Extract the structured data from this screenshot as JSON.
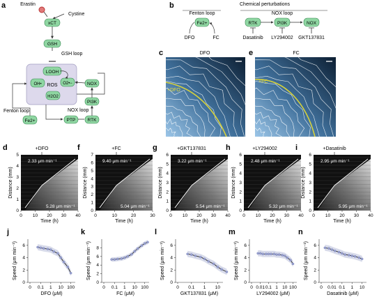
{
  "panels": {
    "a": {
      "letter": "a",
      "erastin": "Erastin",
      "cystine": "Cystine",
      "xct": "xCT",
      "gsh": "GSH",
      "gsh_loop": "GSH loop",
      "gpx4": "GPX4",
      "looh": "LOOH",
      "ros": "ROS",
      "oh": "OH•",
      "o2": "O2•−",
      "h2o2": "H2O2",
      "nox": "NOX",
      "pi3k": "PI3K",
      "ptp": "PTP",
      "rtk": "RTK",
      "fe": "Fe2+",
      "fenton_loop": "Fenton loop",
      "nox_loop": "NOX loop"
    },
    "b": {
      "letter": "b",
      "title": "Chemical perturbations",
      "fenton_loop": "Fenton loop",
      "nox_loop": "NOX loop",
      "fe": "Fe2+",
      "dfo": "DFO",
      "fc": "FC",
      "rtk": "RTK",
      "pi3k": "PI3K",
      "nox": "NOX",
      "dasatinib": "Dasatinib",
      "ly": "LY294002",
      "gkt": "GKT137831"
    },
    "c": {
      "letter": "c",
      "title": "DFO",
      "label": "+DFO"
    },
    "e": {
      "letter": "e",
      "title": "FC",
      "label": "+FC"
    },
    "kymo_common": {
      "ylabel": "Distance (mm)",
      "xlabel": "Time (h)",
      "speed_unit": "μm min⁻¹"
    },
    "kymographs": [
      {
        "letter": "d",
        "treatment": "+DFO",
        "speed_before": "2.33",
        "speed_after": "5.28",
        "xticks": [
          "0",
          "10",
          "20",
          "30",
          "40"
        ],
        "yticks": [
          "0",
          "1",
          "2",
          "3",
          "4",
          "5"
        ]
      },
      {
        "letter": "f",
        "treatment": "+FC",
        "speed_before": "9.40",
        "speed_after": "5.04",
        "xticks": [
          "0",
          "10",
          "20",
          "30"
        ],
        "yticks": [
          "0",
          "1",
          "2",
          "3",
          "4",
          "5",
          "6",
          "7"
        ]
      },
      {
        "letter": "g",
        "treatment": "+GKT137831",
        "speed_before": "3.22",
        "speed_after": "5.54",
        "xticks": [
          "0",
          "10",
          "20",
          "30",
          "40"
        ],
        "yticks": [
          "0",
          "1",
          "2",
          "3",
          "4",
          "5",
          "6"
        ]
      },
      {
        "letter": "h",
        "treatment": "+LY294002",
        "speed_before": "2.48",
        "speed_after": "5.32",
        "xticks": [
          "0",
          "10",
          "20",
          "30",
          "40"
        ],
        "yticks": [
          "0",
          "1",
          "2",
          "3",
          "4",
          "5",
          "6"
        ]
      },
      {
        "letter": "i",
        "treatment": "+Dasatinib",
        "speed_before": "2.95",
        "speed_after": "5.95",
        "xticks": [
          "0",
          "10",
          "20",
          "30",
          "40"
        ],
        "yticks": [
          "0",
          "1",
          "2",
          "3",
          "4",
          "5",
          "6"
        ]
      }
    ],
    "dose_common": {
      "ylabel": "Speed (μm min⁻¹)"
    }
  },
  "chart_data": [
    {
      "type": "scatter",
      "letter": "j",
      "xlabel": "DFO (μM)",
      "ylabel": "Speed (μm min⁻¹)",
      "x_scale": "log",
      "xticks": [
        "0",
        "0.1",
        "1",
        "10",
        "100"
      ],
      "yticks": [
        "0",
        "2",
        "4",
        "6"
      ],
      "ylim": [
        0,
        7
      ],
      "x": [
        0.05,
        0.1,
        0.2,
        0.5,
        1,
        2,
        5,
        10,
        20,
        50,
        100
      ],
      "y": [
        5.7,
        5.6,
        5.5,
        5.4,
        5.3,
        5.0,
        4.7,
        4.0,
        3.3,
        2.5,
        1.5
      ]
    },
    {
      "type": "scatter",
      "letter": "k",
      "xlabel": "FC (μM)",
      "ylabel": "Speed (μm min⁻¹)",
      "x_scale": "log",
      "xticks": [
        "0",
        "0.1",
        "1",
        "10",
        "100"
      ],
      "yticks": [
        "0",
        "2",
        "4",
        "6",
        "8"
      ],
      "ylim": [
        0,
        10
      ],
      "x": [
        0.05,
        0.1,
        0.2,
        0.5,
        1,
        2,
        5,
        10,
        20,
        50,
        100,
        200
      ],
      "y": [
        5.3,
        5.3,
        5.4,
        5.5,
        5.7,
        6.0,
        6.5,
        7.2,
        7.8,
        8.5,
        9.0,
        9.3
      ]
    },
    {
      "type": "scatter",
      "letter": "l",
      "xlabel": "GKT137831 (μM)",
      "ylabel": "Speed (μm min⁻¹)",
      "x_scale": "log",
      "xticks": [
        "0",
        "0.1",
        "1",
        "10"
      ],
      "yticks": [
        "0",
        "2",
        "4",
        "6"
      ],
      "ylim": [
        0,
        7
      ],
      "x": [
        0.05,
        0.1,
        0.2,
        0.5,
        1,
        2,
        5,
        10,
        20,
        50
      ],
      "y": [
        4.6,
        4.5,
        4.3,
        4.1,
        3.8,
        3.4,
        3.0,
        2.5,
        2.1,
        1.7
      ]
    },
    {
      "type": "scatter",
      "letter": "m",
      "xlabel": "LY294002 (μM)",
      "ylabel": "Speed (μm min⁻¹)",
      "x_scale": "log",
      "xticks": [
        "0",
        "0.01",
        "0.1",
        "1",
        "10",
        "100"
      ],
      "yticks": [
        "0",
        "2",
        "4",
        "6"
      ],
      "ylim": [
        0,
        7
      ],
      "x": [
        0.005,
        0.01,
        0.02,
        0.05,
        0.1,
        0.2,
        0.5,
        1,
        2,
        5,
        10,
        20,
        50,
        100
      ],
      "y": [
        4.7,
        4.7,
        4.6,
        4.6,
        4.6,
        4.6,
        4.6,
        4.5,
        4.5,
        4.4,
        4.3,
        4.0,
        3.6,
        3.0
      ]
    },
    {
      "type": "scatter",
      "letter": "n",
      "xlabel": "Dasatinib (μM)",
      "ylabel": "Speed (μm min⁻¹)",
      "x_scale": "log",
      "xticks": [
        "0",
        "0.01",
        "0.1",
        "1",
        "10"
      ],
      "yticks": [
        "0",
        "2",
        "4",
        "6"
      ],
      "ylim": [
        0,
        7
      ],
      "x": [
        0.002,
        0.005,
        0.01,
        0.02,
        0.05,
        0.1,
        0.2,
        0.5,
        1,
        2,
        5,
        10
      ],
      "y": [
        5.6,
        5.5,
        5.3,
        5.1,
        4.9,
        4.7,
        4.5,
        4.4,
        4.3,
        4.2,
        4.0,
        3.8
      ]
    }
  ]
}
